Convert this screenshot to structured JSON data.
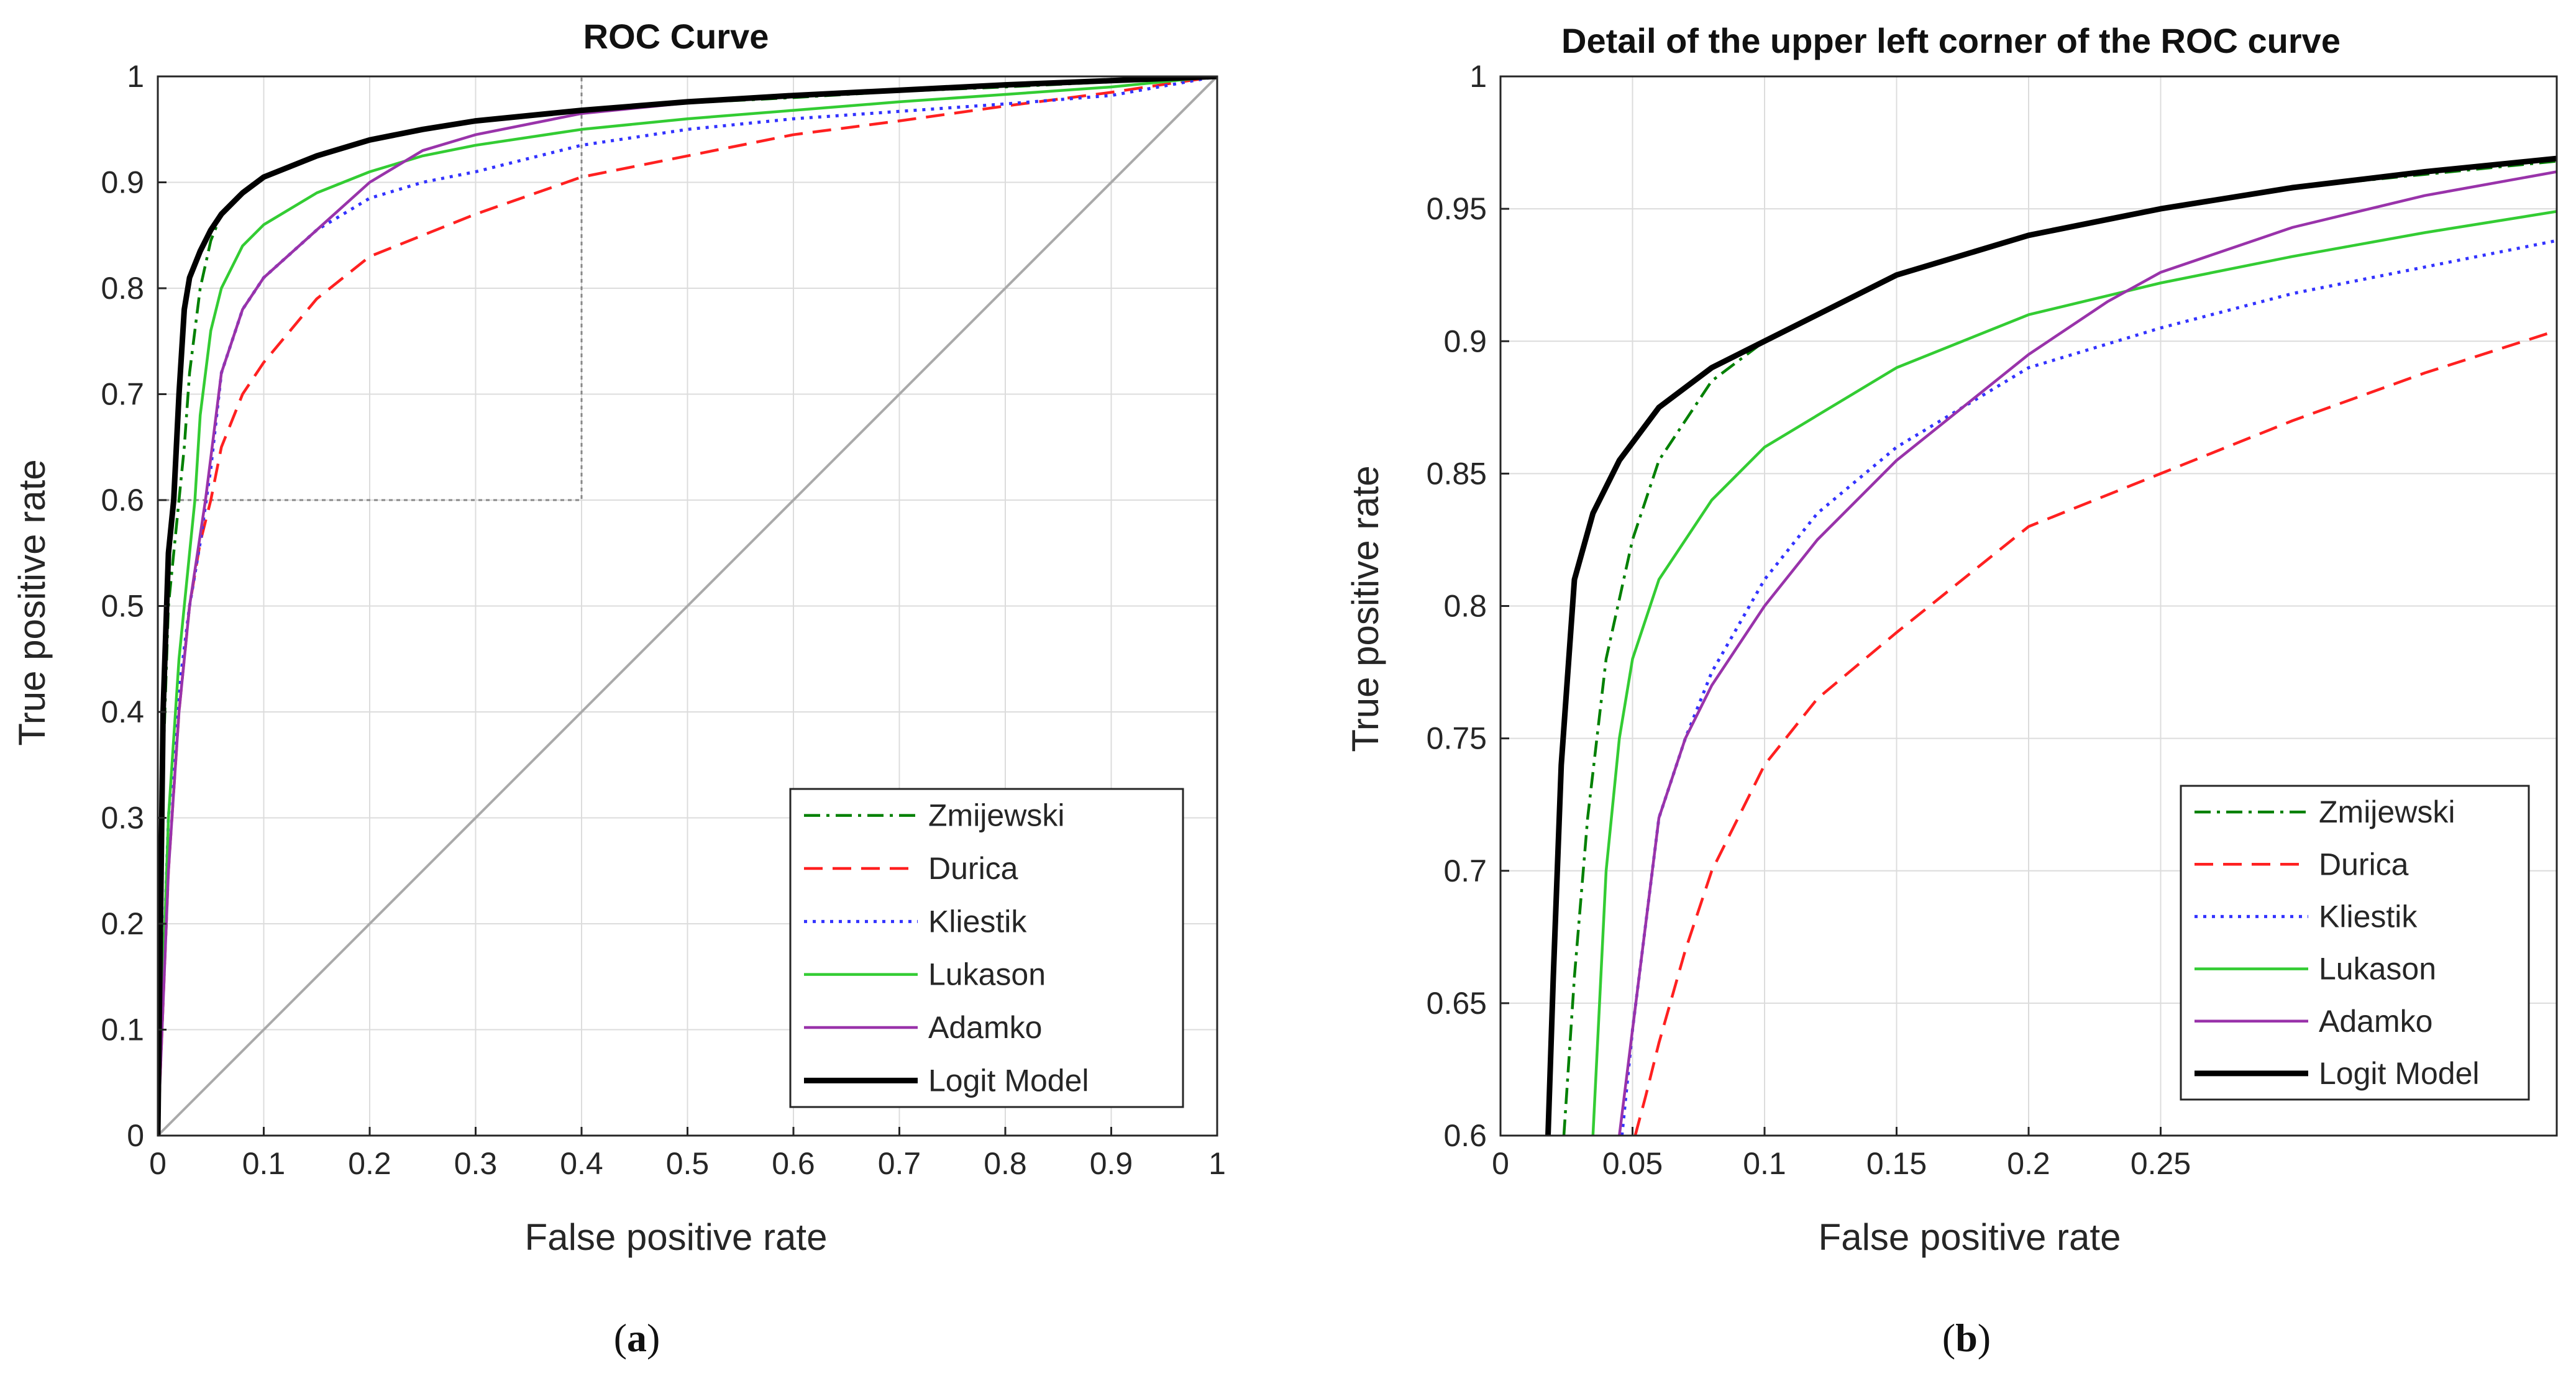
{
  "chart_data": [
    {
      "type": "line",
      "panel": "a",
      "title": "ROC Curve",
      "xlabel": "False positive rate",
      "ylabel": "True positive rate",
      "xlim": [
        0,
        1
      ],
      "ylim": [
        0,
        1
      ],
      "xticks": [
        0,
        0.1,
        0.2,
        0.3,
        0.4,
        0.5,
        0.6,
        0.7,
        0.8,
        0.9,
        1
      ],
      "yticks": [
        0,
        0.1,
        0.2,
        0.3,
        0.4,
        0.5,
        0.6,
        0.7,
        0.8,
        0.9,
        1
      ],
      "xtick_labels": [
        "0",
        "0.1",
        "0.2",
        "0.3",
        "0.4",
        "0.5",
        "0.6",
        "0.7",
        "0.8",
        "0.9",
        "1"
      ],
      "ytick_labels": [
        "0",
        "0.1",
        "0.2",
        "0.3",
        "0.4",
        "0.5",
        "0.6",
        "0.7",
        "0.8",
        "0.9",
        "1"
      ],
      "grid": true,
      "legend_position": "bottom-right",
      "reference_line": {
        "x": [
          0,
          1
        ],
        "y": [
          0,
          1
        ],
        "color": "#aaaaaa"
      },
      "detail_box": {
        "x": [
          0,
          0.4
        ],
        "y": [
          0.6,
          1
        ],
        "color": "#888888"
      },
      "series": [
        {
          "name": "Zmijewski",
          "color": "#008000",
          "style": "dashdot",
          "x": [
            0,
            0.005,
            0.01,
            0.02,
            0.025,
            0.03,
            0.04,
            0.05,
            0.06,
            0.08,
            0.1,
            0.15,
            0.2,
            0.25,
            0.3,
            0.4,
            0.5,
            0.6,
            0.7,
            0.8,
            0.9,
            1
          ],
          "y": [
            0,
            0.35,
            0.5,
            0.6,
            0.65,
            0.72,
            0.8,
            0.845,
            0.87,
            0.89,
            0.905,
            0.925,
            0.94,
            0.95,
            0.958,
            0.968,
            0.975,
            0.98,
            0.986,
            0.99,
            0.995,
            1
          ]
        },
        {
          "name": "Durica",
          "color": "#ff2020",
          "style": "dashed",
          "x": [
            0,
            0.01,
            0.02,
            0.03,
            0.04,
            0.05,
            0.06,
            0.08,
            0.1,
            0.15,
            0.2,
            0.25,
            0.3,
            0.4,
            0.5,
            0.6,
            0.7,
            0.8,
            0.9,
            1
          ],
          "y": [
            0,
            0.25,
            0.4,
            0.5,
            0.56,
            0.6,
            0.65,
            0.7,
            0.73,
            0.79,
            0.83,
            0.85,
            0.87,
            0.905,
            0.925,
            0.945,
            0.958,
            0.972,
            0.985,
            1
          ]
        },
        {
          "name": "Kliestik",
          "color": "#3333ff",
          "style": "dotted",
          "x": [
            0,
            0.01,
            0.02,
            0.03,
            0.04,
            0.05,
            0.06,
            0.08,
            0.1,
            0.15,
            0.2,
            0.25,
            0.3,
            0.4,
            0.5,
            0.6,
            0.7,
            0.8,
            0.9,
            1
          ],
          "y": [
            0,
            0.3,
            0.42,
            0.5,
            0.56,
            0.63,
            0.72,
            0.78,
            0.81,
            0.855,
            0.885,
            0.9,
            0.91,
            0.935,
            0.95,
            0.96,
            0.967,
            0.974,
            0.982,
            1
          ]
        },
        {
          "name": "Lukason",
          "color": "#33cc33",
          "style": "solid",
          "x": [
            0,
            0.01,
            0.02,
            0.03,
            0.035,
            0.04,
            0.05,
            0.06,
            0.08,
            0.1,
            0.15,
            0.2,
            0.25,
            0.3,
            0.4,
            0.5,
            0.6,
            0.7,
            0.8,
            0.9,
            1
          ],
          "y": [
            0,
            0.3,
            0.45,
            0.55,
            0.6,
            0.68,
            0.76,
            0.8,
            0.84,
            0.86,
            0.89,
            0.91,
            0.925,
            0.935,
            0.95,
            0.96,
            0.968,
            0.976,
            0.983,
            0.99,
            1
          ]
        },
        {
          "name": "Adamko",
          "color": "#9933aa",
          "style": "solid",
          "x": [
            0,
            0.01,
            0.02,
            0.03,
            0.045,
            0.05,
            0.06,
            0.08,
            0.1,
            0.15,
            0.2,
            0.25,
            0.3,
            0.4,
            0.5,
            0.6,
            0.7,
            0.8,
            0.9,
            1
          ],
          "y": [
            0,
            0.25,
            0.4,
            0.5,
            0.6,
            0.64,
            0.72,
            0.78,
            0.81,
            0.855,
            0.9,
            0.93,
            0.945,
            0.965,
            0.975,
            0.982,
            0.987,
            0.992,
            0.996,
            1
          ]
        },
        {
          "name": "Logit Model",
          "color": "#000000",
          "style": "solid-thick",
          "x": [
            0,
            0.005,
            0.01,
            0.015,
            0.02,
            0.025,
            0.03,
            0.04,
            0.05,
            0.06,
            0.08,
            0.1,
            0.15,
            0.2,
            0.25,
            0.3,
            0.4,
            0.5,
            0.6,
            0.7,
            0.8,
            0.9,
            1
          ],
          "y": [
            0,
            0.4,
            0.55,
            0.6,
            0.7,
            0.78,
            0.81,
            0.835,
            0.855,
            0.87,
            0.89,
            0.905,
            0.925,
            0.94,
            0.95,
            0.958,
            0.968,
            0.976,
            0.982,
            0.987,
            0.992,
            0.996,
            1
          ]
        }
      ]
    },
    {
      "type": "line",
      "panel": "b",
      "title": "Detail of the upper left corner of the ROC curve",
      "xlabel": "False positive rate",
      "ylabel": "True positive rate",
      "xlim": [
        0,
        0.4
      ],
      "ylim": [
        0.6,
        1
      ],
      "xticks": [
        0,
        0.05,
        0.1,
        0.15,
        0.2,
        0.25
      ],
      "yticks": [
        0.6,
        0.65,
        0.7,
        0.75,
        0.8,
        0.85,
        0.9,
        0.95,
        1
      ],
      "xtick_labels": [
        "0",
        "0.05",
        "0.1",
        "0.15",
        "0.2",
        "0.25"
      ],
      "ytick_labels": [
        "0.6",
        "0.65",
        "0.7",
        "0.75",
        "0.8",
        "0.85",
        "0.9",
        "0.95",
        "1"
      ],
      "grid": true,
      "legend_position": "bottom-right",
      "series": [
        {
          "name": "Zmijewski",
          "color": "#008000",
          "style": "dashdot",
          "x": [
            0.024,
            0.028,
            0.033,
            0.04,
            0.05,
            0.06,
            0.08,
            0.1,
            0.15,
            0.2,
            0.25,
            0.3,
            0.35,
            0.4
          ],
          "y": [
            0.6,
            0.66,
            0.72,
            0.78,
            0.825,
            0.855,
            0.885,
            0.9,
            0.925,
            0.94,
            0.95,
            0.958,
            0.963,
            0.968
          ]
        },
        {
          "name": "Durica",
          "color": "#ff2020",
          "style": "dashed",
          "x": [
            0.051,
            0.055,
            0.06,
            0.07,
            0.08,
            0.1,
            0.12,
            0.15,
            0.2,
            0.25,
            0.3,
            0.35,
            0.4
          ],
          "y": [
            0.6,
            0.615,
            0.635,
            0.67,
            0.7,
            0.74,
            0.765,
            0.79,
            0.83,
            0.85,
            0.87,
            0.888,
            0.904
          ]
        },
        {
          "name": "Kliestik",
          "color": "#3333ff",
          "style": "dotted",
          "x": [
            0.046,
            0.05,
            0.06,
            0.07,
            0.08,
            0.1,
            0.12,
            0.15,
            0.2,
            0.25,
            0.3,
            0.35,
            0.4
          ],
          "y": [
            0.6,
            0.64,
            0.72,
            0.75,
            0.775,
            0.81,
            0.835,
            0.86,
            0.89,
            0.905,
            0.918,
            0.928,
            0.938
          ]
        },
        {
          "name": "Lukason",
          "color": "#33cc33",
          "style": "solid",
          "x": [
            0.035,
            0.037,
            0.04,
            0.045,
            0.05,
            0.06,
            0.08,
            0.1,
            0.15,
            0.2,
            0.25,
            0.3,
            0.35,
            0.4
          ],
          "y": [
            0.6,
            0.64,
            0.7,
            0.75,
            0.78,
            0.81,
            0.84,
            0.86,
            0.89,
            0.91,
            0.922,
            0.932,
            0.941,
            0.949
          ]
        },
        {
          "name": "Adamko",
          "color": "#9933aa",
          "style": "solid",
          "x": [
            0.045,
            0.05,
            0.06,
            0.07,
            0.08,
            0.1,
            0.12,
            0.15,
            0.2,
            0.23,
            0.25,
            0.3,
            0.35,
            0.4
          ],
          "y": [
            0.6,
            0.64,
            0.72,
            0.75,
            0.77,
            0.8,
            0.825,
            0.855,
            0.895,
            0.915,
            0.926,
            0.943,
            0.955,
            0.964
          ]
        },
        {
          "name": "Logit Model",
          "color": "#000000",
          "style": "solid-thick",
          "x": [
            0.018,
            0.02,
            0.023,
            0.028,
            0.035,
            0.045,
            0.06,
            0.08,
            0.1,
            0.15,
            0.2,
            0.25,
            0.3,
            0.35,
            0.4
          ],
          "y": [
            0.6,
            0.66,
            0.74,
            0.81,
            0.835,
            0.855,
            0.875,
            0.89,
            0.9,
            0.925,
            0.94,
            0.95,
            0.958,
            0.964,
            0.969
          ]
        }
      ]
    }
  ],
  "panel_labels": {
    "a_open": "(",
    "a_letter": "a",
    "a_close": ")",
    "b_open": "(",
    "b_letter": "b",
    "b_close": ")"
  }
}
